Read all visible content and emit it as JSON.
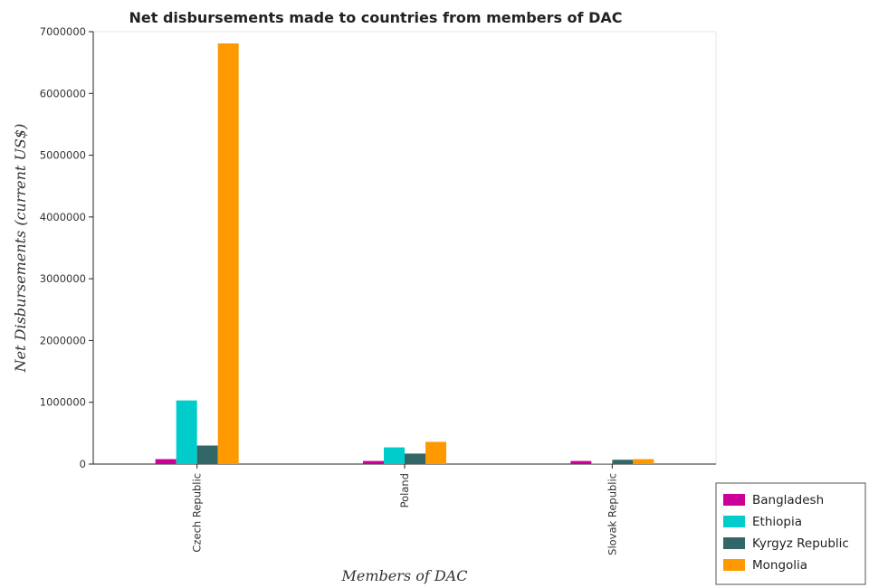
{
  "chart_data": {
    "type": "bar",
    "title": "Net disbursements made to countries from members of DAC",
    "xlabel": "Members of DAC",
    "ylabel": "Net Disbursements (current US$)",
    "categories": [
      "Czech Republic",
      "Poland",
      "Slovak Republic"
    ],
    "ylim": [
      0,
      7000000
    ],
    "yticks": [
      0,
      1000000,
      2000000,
      3000000,
      4000000,
      5000000,
      6000000,
      7000000
    ],
    "ytick_labels": [
      "0",
      "1000000",
      "2000000",
      "3000000",
      "4000000",
      "5000000",
      "6000000",
      "7000000"
    ],
    "grid": false,
    "legend_position": "bottom-right",
    "series": [
      {
        "name": "Bangladesh",
        "color": "#cc0099",
        "values": [
          80000,
          50000,
          50000
        ]
      },
      {
        "name": "Ethiopia",
        "color": "#00cccc",
        "values": [
          1030000,
          270000,
          10000
        ]
      },
      {
        "name": "Kyrgyz Republic",
        "color": "#336666",
        "values": [
          300000,
          170000,
          70000
        ]
      },
      {
        "name": "Mongolia",
        "color": "#ff9900",
        "values": [
          6810000,
          360000,
          80000
        ]
      }
    ]
  }
}
